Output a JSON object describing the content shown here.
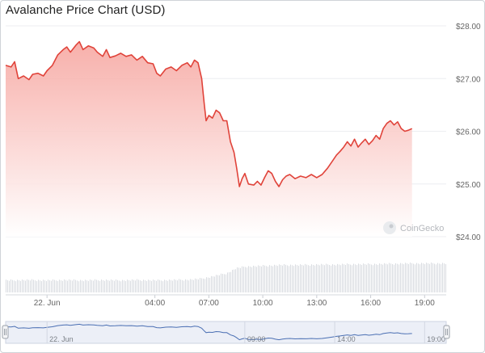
{
  "chart_data": {
    "type": "area",
    "title": "Avalanche Price Chart (USD)",
    "currency": "USD",
    "ylim": [
      24.0,
      28.0
    ],
    "y_ticks": [
      "$28.00",
      "$27.00",
      "$26.00",
      "$25.00",
      "$24.00"
    ],
    "y_tick_values": [
      28,
      27,
      26,
      25,
      24
    ],
    "x_tick_labels": [
      "22. Jun",
      "04:00",
      "07:00",
      "10:00",
      "13:00",
      "16:00",
      "19:00"
    ],
    "x_tick_positions": [
      1,
      7,
      10,
      13,
      16,
      19,
      22
    ],
    "x_range_hours": [
      -1.3,
      23.2
    ],
    "grid": true,
    "colors": {
      "line": "#e0433a",
      "fill_top": "#f6a29c",
      "fill_bottom": "#ffffff",
      "volume": "#d8dbe0",
      "navigator_line": "#4a6fb3"
    },
    "series": [
      {
        "values": [
          [
            -1.3,
            27.25
          ],
          [
            -1.0,
            27.22
          ],
          [
            -0.8,
            27.32
          ],
          [
            -0.6,
            27.0
          ],
          [
            -0.3,
            27.05
          ],
          [
            0.0,
            26.98
          ],
          [
            0.2,
            27.08
          ],
          [
            0.5,
            27.1
          ],
          [
            0.8,
            27.05
          ],
          [
            1.0,
            27.15
          ],
          [
            1.3,
            27.25
          ],
          [
            1.6,
            27.45
          ],
          [
            1.9,
            27.55
          ],
          [
            2.1,
            27.6
          ],
          [
            2.3,
            27.5
          ],
          [
            2.6,
            27.63
          ],
          [
            2.8,
            27.7
          ],
          [
            3.0,
            27.55
          ],
          [
            3.3,
            27.62
          ],
          [
            3.6,
            27.58
          ],
          [
            3.8,
            27.5
          ],
          [
            4.1,
            27.42
          ],
          [
            4.3,
            27.55
          ],
          [
            4.5,
            27.4
          ],
          [
            4.8,
            27.43
          ],
          [
            5.1,
            27.48
          ],
          [
            5.4,
            27.42
          ],
          [
            5.7,
            27.45
          ],
          [
            6.0,
            27.35
          ],
          [
            6.3,
            27.42
          ],
          [
            6.6,
            27.3
          ],
          [
            6.9,
            27.28
          ],
          [
            7.1,
            27.1
          ],
          [
            7.3,
            27.05
          ],
          [
            7.6,
            27.18
          ],
          [
            7.9,
            27.22
          ],
          [
            8.2,
            27.15
          ],
          [
            8.5,
            27.25
          ],
          [
            8.8,
            27.3
          ],
          [
            9.0,
            27.22
          ],
          [
            9.2,
            27.35
          ],
          [
            9.4,
            27.3
          ],
          [
            9.6,
            27.0
          ],
          [
            9.75,
            26.5
          ],
          [
            9.85,
            26.2
          ],
          [
            10.0,
            26.3
          ],
          [
            10.2,
            26.25
          ],
          [
            10.4,
            26.4
          ],
          [
            10.6,
            26.35
          ],
          [
            10.8,
            26.2
          ],
          [
            11.0,
            26.2
          ],
          [
            11.2,
            25.8
          ],
          [
            11.4,
            25.6
          ],
          [
            11.55,
            25.3
          ],
          [
            11.7,
            24.95
          ],
          [
            11.85,
            25.1
          ],
          [
            12.0,
            25.2
          ],
          [
            12.2,
            25.0
          ],
          [
            12.5,
            24.98
          ],
          [
            12.7,
            25.05
          ],
          [
            12.9,
            24.98
          ],
          [
            13.1,
            25.12
          ],
          [
            13.3,
            25.25
          ],
          [
            13.5,
            25.2
          ],
          [
            13.7,
            25.05
          ],
          [
            13.9,
            24.95
          ],
          [
            14.1,
            25.08
          ],
          [
            14.3,
            25.15
          ],
          [
            14.5,
            25.18
          ],
          [
            14.8,
            25.1
          ],
          [
            15.1,
            25.15
          ],
          [
            15.4,
            25.12
          ],
          [
            15.7,
            25.18
          ],
          [
            16.0,
            25.12
          ],
          [
            16.3,
            25.18
          ],
          [
            16.6,
            25.3
          ],
          [
            16.9,
            25.45
          ],
          [
            17.1,
            25.55
          ],
          [
            17.3,
            25.62
          ],
          [
            17.5,
            25.7
          ],
          [
            17.7,
            25.8
          ],
          [
            17.9,
            25.72
          ],
          [
            18.1,
            25.85
          ],
          [
            18.3,
            25.7
          ],
          [
            18.5,
            25.78
          ],
          [
            18.7,
            25.85
          ],
          [
            18.9,
            25.75
          ],
          [
            19.1,
            25.82
          ],
          [
            19.3,
            25.92
          ],
          [
            19.5,
            25.85
          ],
          [
            19.7,
            26.05
          ],
          [
            19.9,
            26.15
          ],
          [
            20.1,
            26.2
          ],
          [
            20.3,
            26.12
          ],
          [
            20.5,
            26.18
          ],
          [
            20.7,
            26.05
          ],
          [
            20.9,
            26.0
          ],
          [
            21.1,
            26.02
          ],
          [
            21.3,
            26.05
          ]
        ]
      }
    ],
    "volume": [
      [
        -1.3,
        0.32
      ],
      [
        0.0,
        0.33
      ],
      [
        1.0,
        0.32
      ],
      [
        2.0,
        0.33
      ],
      [
        3.0,
        0.32
      ],
      [
        4.0,
        0.33
      ],
      [
        5.0,
        0.32
      ],
      [
        6.0,
        0.33
      ],
      [
        7.0,
        0.32
      ],
      [
        8.0,
        0.33
      ],
      [
        9.0,
        0.34
      ],
      [
        9.5,
        0.36
      ],
      [
        10.0,
        0.4
      ],
      [
        10.5,
        0.45
      ],
      [
        11.0,
        0.5
      ],
      [
        11.5,
        0.62
      ],
      [
        12.0,
        0.66
      ],
      [
        13.0,
        0.68
      ],
      [
        14.0,
        0.7
      ],
      [
        15.0,
        0.7
      ],
      [
        16.0,
        0.71
      ],
      [
        17.0,
        0.71
      ],
      [
        18.0,
        0.72
      ],
      [
        19.0,
        0.72
      ],
      [
        20.0,
        0.73
      ],
      [
        21.3,
        0.74
      ]
    ],
    "navigator": {
      "tick_labels": [
        "22. Jun",
        "09:00",
        "14:00",
        "19:00"
      ],
      "tick_positions": [
        1,
        12,
        17,
        22
      ]
    }
  },
  "watermark": {
    "text": "CoinGecko",
    "icon": "gecko-logo-icon"
  }
}
